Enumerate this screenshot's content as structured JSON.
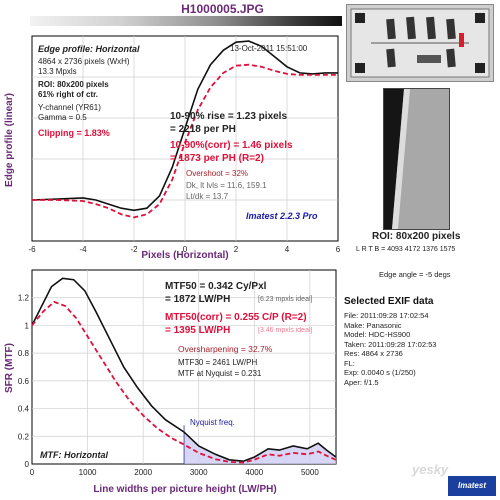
{
  "file_name": "H1000005.JPG",
  "top_chart": {
    "header": "Edge profile: Horizontal",
    "date": "13-Oct-2011 15:51:00",
    "info_lines": [
      "4864 x 2736 pixels (WxH)",
      "13.3 Mpxls"
    ],
    "roi_lines": [
      "ROI: 80x200 pixels",
      "61% right of ctr."
    ],
    "channel_lines": [
      "Y-channel (YR61)",
      "Gamma = 0.5"
    ],
    "clipping": "Clipping =  1.83%",
    "rise_lines": [
      "10-90% rise = 1.23 pixels",
      "= 2218 per PH"
    ],
    "corr_lines": [
      "10-90%(corr) = 1.46 pixels",
      "= 1873 per PH  (R=2)"
    ],
    "overshoot": "Overshoot = 32%",
    "dk_lines": [
      "Dk, lt lvls = 11.6, 159.1",
      "Lt/dk = 13.7"
    ],
    "version": "Imatest 2.2.3 Pro",
    "ylabel": "Edge profile (linear)",
    "xlabel": "Pixels (Horizontal)"
  },
  "bottom_chart": {
    "mtf50_lines": [
      "MTF50 = 0.342 Cy/Pxl",
      "= 1872 LW/PH"
    ],
    "mtf50_ideal": "[6.23 mpxls ideal]",
    "mtf50corr_lines": [
      "MTF50(corr) = 0.255 C/P  (R=2)",
      "= 1395 LW/PH"
    ],
    "mtf50corr_ideal": "[3.46 mpxls ideal]",
    "oversharpening": "Oversharpening = 32.7%",
    "mtf30": "MTF30 = 2461 LW/PH",
    "mtf_nyq": "MTF at Nyquist = 0.231",
    "nyquist_label": "Nyquist freq.",
    "footer": "MTF: Horizontal",
    "ylabel": "SFR (MTF)",
    "xlabel": "Line widths per picture height (LW/PH)"
  },
  "roi_panel": {
    "label": "ROI: 80x200 pixels",
    "lrtb": "L R T B = 4093 4172  1376 1575",
    "edge_angle": "Edge angle = -5 degs"
  },
  "exif": {
    "title": "Selected EXIF data",
    "rows": [
      "File:  2011:09:28 17:02:54",
      "Make:  Panasonic",
      "Model:  HDC-HS900",
      "Taken:  2011:09:28 17:02:53",
      "Res:  4864 x 2736",
      "FL:",
      "Exp:  0.0040 s  (1/250)",
      "Aper:  f/1.5"
    ]
  },
  "watermark": "yesky",
  "logo": "Imatest",
  "chart_data": [
    {
      "type": "line",
      "title": "Edge profile: Horizontal",
      "xlabel": "Pixels (Horizontal)",
      "ylabel": "Edge profile (linear)",
      "xlim": [
        -6,
        6
      ],
      "x_ticks": [
        -6,
        -4,
        -2,
        0,
        2,
        4,
        6
      ],
      "ylim": [
        0,
        1
      ],
      "series": [
        {
          "color": "#111111",
          "style": "solid",
          "points": [
            [
              -6,
              0.2
            ],
            [
              -5,
              0.205
            ],
            [
              -4,
              0.21
            ],
            [
              -3.5,
              0.2
            ],
            [
              -3,
              0.18
            ],
            [
              -2.5,
              0.16
            ],
            [
              -2,
              0.15
            ],
            [
              -1.5,
              0.16
            ],
            [
              -1,
              0.22
            ],
            [
              -0.5,
              0.36
            ],
            [
              0,
              0.55
            ],
            [
              0.5,
              0.74
            ],
            [
              1,
              0.86
            ],
            [
              1.5,
              0.93
            ],
            [
              2,
              0.97
            ],
            [
              2.5,
              0.975
            ],
            [
              3,
              0.95
            ],
            [
              3.5,
              0.9
            ],
            [
              4,
              0.85
            ],
            [
              4.5,
              0.82
            ],
            [
              5,
              0.815
            ],
            [
              5.5,
              0.82
            ],
            [
              6,
              0.82
            ]
          ]
        },
        {
          "color": "#e0103a",
          "style": "dashed",
          "points": [
            [
              -6,
              0.2
            ],
            [
              -5,
              0.2
            ],
            [
              -4,
              0.195
            ],
            [
              -3.5,
              0.18
            ],
            [
              -3,
              0.16
            ],
            [
              -2.5,
              0.13
            ],
            [
              -2,
              0.115
            ],
            [
              -1.5,
              0.13
            ],
            [
              -1,
              0.18
            ],
            [
              -0.5,
              0.3
            ],
            [
              0,
              0.48
            ],
            [
              0.5,
              0.64
            ],
            [
              1,
              0.75
            ],
            [
              1.5,
              0.82
            ],
            [
              2,
              0.855
            ],
            [
              2.5,
              0.86
            ],
            [
              3,
              0.85
            ],
            [
              3.5,
              0.83
            ],
            [
              4,
              0.815
            ],
            [
              4.5,
              0.81
            ],
            [
              5,
              0.81
            ],
            [
              5.5,
              0.81
            ],
            [
              6,
              0.81
            ]
          ]
        }
      ]
    },
    {
      "type": "line",
      "title": "MTF: Horizontal",
      "xlabel": "Line widths per picture height (LW/PH)",
      "ylabel": "SFR (MTF)",
      "xlim": [
        0,
        5470
      ],
      "x_ticks": [
        0,
        1000,
        2000,
        3000,
        4000,
        5000
      ],
      "ylim": [
        0,
        1.4
      ],
      "y_ticks": [
        0,
        0.2,
        0.4,
        0.6,
        0.8,
        1.0,
        1.2
      ],
      "nyquist_x": 2736,
      "series": [
        {
          "color": "#111111",
          "style": "solid",
          "points": [
            [
              0,
              1.0
            ],
            [
              150,
              1.12
            ],
            [
              350,
              1.28
            ],
            [
              550,
              1.34
            ],
            [
              750,
              1.33
            ],
            [
              950,
              1.25
            ],
            [
              1150,
              1.1
            ],
            [
              1400,
              0.9
            ],
            [
              1650,
              0.7
            ],
            [
              1900,
              0.55
            ],
            [
              2150,
              0.42
            ],
            [
              2400,
              0.32
            ],
            [
              2736,
              0.23
            ],
            [
              3000,
              0.13
            ],
            [
              3300,
              0.07
            ],
            [
              3550,
              0.03
            ],
            [
              3800,
              0.02
            ],
            [
              4000,
              0.05
            ],
            [
              4250,
              0.11
            ],
            [
              4450,
              0.1
            ],
            [
              4700,
              0.13
            ],
            [
              4950,
              0.11
            ],
            [
              5150,
              0.15
            ],
            [
              5300,
              0.1
            ],
            [
              5470,
              0.05
            ]
          ]
        },
        {
          "color": "#e0103a",
          "style": "dashed",
          "points": [
            [
              0,
              1.0
            ],
            [
              200,
              1.1
            ],
            [
              400,
              1.17
            ],
            [
              600,
              1.14
            ],
            [
              800,
              1.05
            ],
            [
              1000,
              0.92
            ],
            [
              1250,
              0.76
            ],
            [
              1500,
              0.6
            ],
            [
              1750,
              0.46
            ],
            [
              2000,
              0.35
            ],
            [
              2250,
              0.26
            ],
            [
              2500,
              0.19
            ],
            [
              2736,
              0.14
            ],
            [
              3000,
              0.08
            ],
            [
              3300,
              0.035
            ],
            [
              3550,
              0.015
            ],
            [
              3800,
              0.01
            ],
            [
              4000,
              0.03
            ],
            [
              4250,
              0.07
            ],
            [
              4450,
              0.06
            ],
            [
              4700,
              0.08
            ],
            [
              4950,
              0.07
            ],
            [
              5150,
              0.09
            ],
            [
              5300,
              0.06
            ],
            [
              5470,
              0.03
            ]
          ]
        }
      ]
    }
  ]
}
